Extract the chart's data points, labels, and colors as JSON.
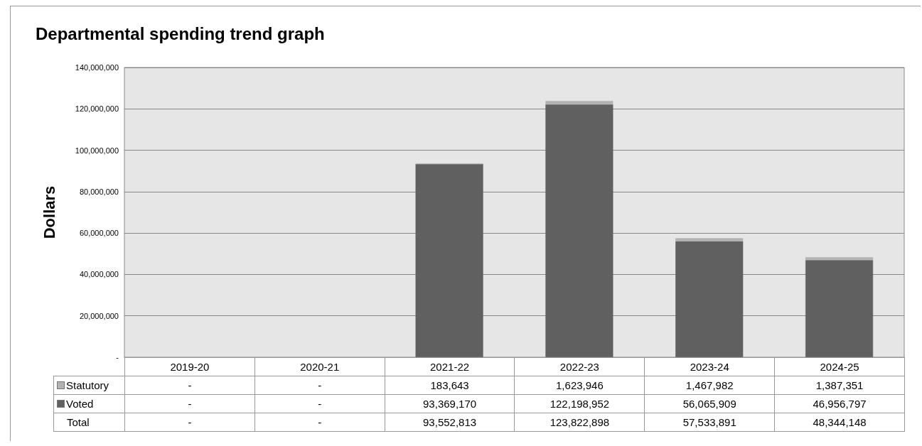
{
  "chart_data": {
    "type": "bar",
    "title": "Departmental spending trend graph",
    "ylabel": "Dollars",
    "categories": [
      "2019-20",
      "2020-21",
      "2021-22",
      "2022-23",
      "2023-24",
      "2024-25"
    ],
    "stacked": true,
    "series": [
      {
        "name": "Voted",
        "color": "#606060",
        "values": [
          null,
          null,
          93369170,
          122198952,
          56065909,
          46956797
        ],
        "value_labels": [
          "-",
          "-",
          "93,369,170",
          "122,198,952",
          "56,065,909",
          "46,956,797"
        ]
      },
      {
        "name": "Statutory",
        "color": "#b2b2b2",
        "values": [
          null,
          null,
          183643,
          1623946,
          1467982,
          1387351
        ],
        "value_labels": [
          "-",
          "-",
          "183,643",
          "1,623,946",
          "1,467,982",
          "1,387,351"
        ]
      }
    ],
    "ylim": [
      0,
      140000000
    ],
    "yticks": [
      {
        "value": 0,
        "label": "-"
      },
      {
        "value": 20000000,
        "label": "20,000,000"
      },
      {
        "value": 40000000,
        "label": "40,000,000"
      },
      {
        "value": 60000000,
        "label": "60,000,000"
      },
      {
        "value": 80000000,
        "label": "80,000,000"
      },
      {
        "value": 100000000,
        "label": "100,000,000"
      },
      {
        "value": 120000000,
        "label": "120,000,000"
      },
      {
        "value": 140000000,
        "label": "140,000,000"
      }
    ],
    "annotations": [
      "Total",
      "-",
      "-",
      "93,552,813",
      "123,822,898",
      "57,533,891",
      "48,344,148"
    ],
    "grid": "y",
    "legend": "bottom"
  }
}
